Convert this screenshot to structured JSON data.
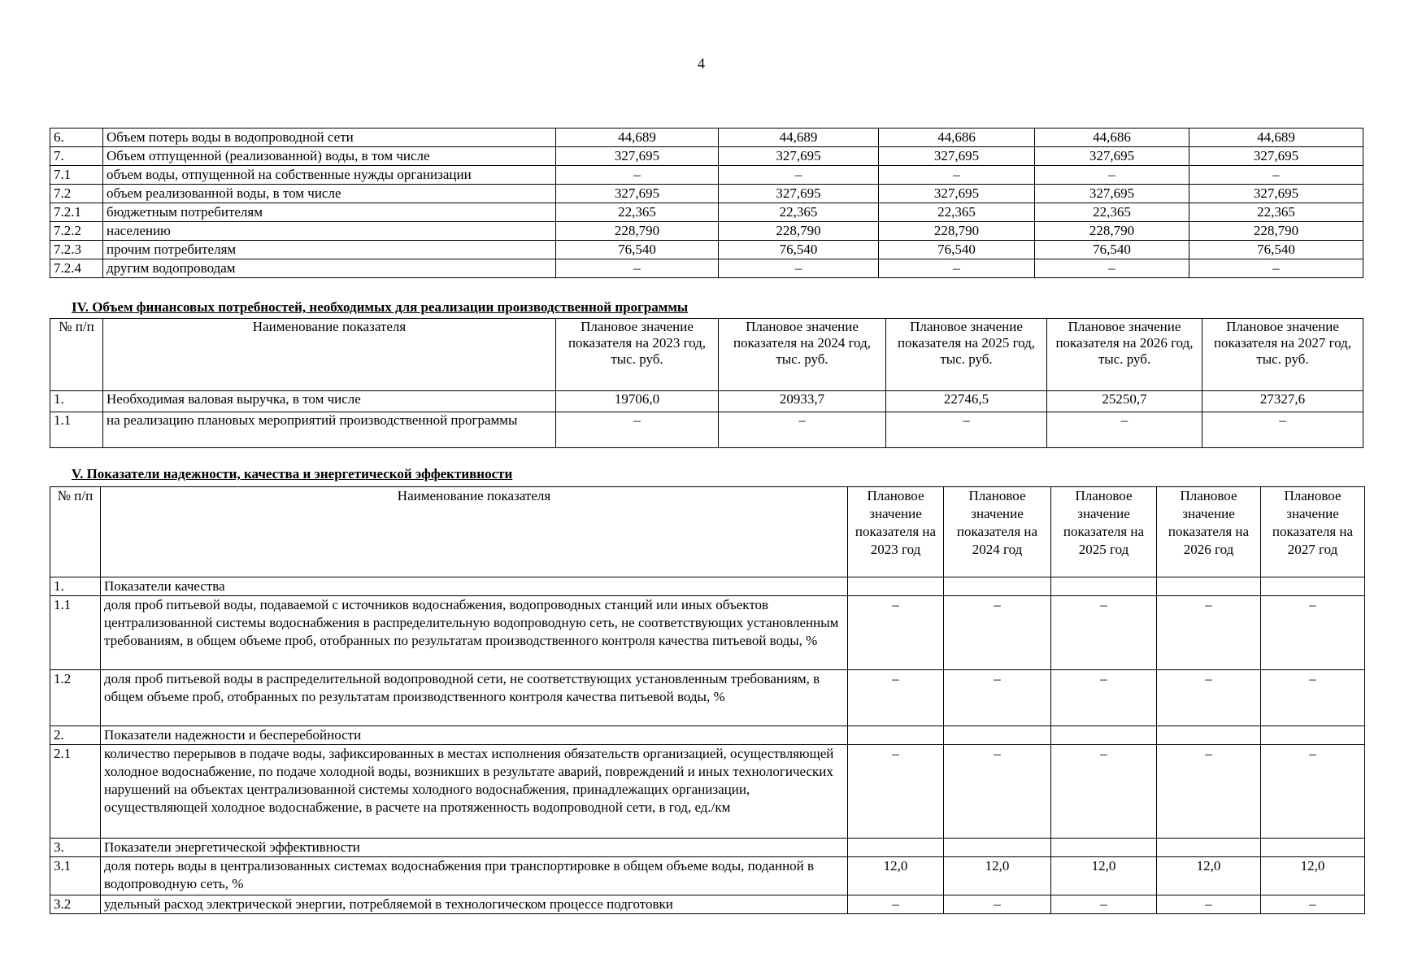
{
  "page_number": "4",
  "table_top": {
    "rows": [
      {
        "num": "6.",
        "name": "Объем потерь воды в водопроводной сети",
        "values": [
          "44,689",
          "44,689",
          "44,686",
          "44,686",
          "44,689"
        ]
      },
      {
        "num": "7.",
        "name": "Объем отпущенной (реализованной) воды, в том числе",
        "values": [
          "327,695",
          "327,695",
          "327,695",
          "327,695",
          "327,695"
        ]
      },
      {
        "num": "7.1",
        "name": "объем воды, отпущенной на собственные нужды организации",
        "values": [
          "–",
          "–",
          "–",
          "–",
          "–"
        ]
      },
      {
        "num": "7.2",
        "name": "объем реализованной воды, в том числе",
        "values": [
          "327,695",
          "327,695",
          "327,695",
          "327,695",
          "327,695"
        ]
      },
      {
        "num": "7.2.1",
        "name": "бюджетным потребителям",
        "values": [
          "22,365",
          "22,365",
          "22,365",
          "22,365",
          "22,365"
        ]
      },
      {
        "num": "7.2.2",
        "name": "населению",
        "values": [
          "228,790",
          "228,790",
          "228,790",
          "228,790",
          "228,790"
        ]
      },
      {
        "num": "7.2.3",
        "name": "прочим потребителям",
        "values": [
          "76,540",
          "76,540",
          "76,540",
          "76,540",
          "76,540"
        ]
      },
      {
        "num": "7.2.4",
        "name": "другим водопроводам",
        "values": [
          "–",
          "–",
          "–",
          "–",
          "–"
        ]
      }
    ]
  },
  "section4": {
    "title": "IV. Объем финансовых потребностей, необходимых для реализации производственной программы",
    "header": {
      "num": "№ п/п",
      "name": "Наименование показателя",
      "years": [
        "Плановое значение показателя на 2023 год, тыс. руб.",
        "Плановое значение показателя на 2024 год, тыс. руб.",
        "Плановое значение показателя на 2025 год, тыс. руб.",
        "Плановое значение показателя на 2026 год, тыс. руб.",
        "Плановое значение показателя на 2027 год, тыс. руб."
      ]
    },
    "rows": [
      {
        "num": "1.",
        "name": "Необходимая валовая выручка, в том числе",
        "values": [
          "19706,0",
          "20933,7",
          "22746,5",
          "25250,7",
          "27327,6"
        ]
      },
      {
        "num": "1.1",
        "name": "на реализацию плановых мероприятий производственной программы",
        "values": [
          "–",
          "–",
          "–",
          "–",
          "–"
        ]
      }
    ]
  },
  "section5": {
    "title": "V. Показатели надежности, качества и энергетической эффективности",
    "header": {
      "num": "№ п/п",
      "name": "Наименование показателя",
      "years": [
        "Плановое значение показателя на 2023 год",
        "Плановое значение показателя на 2024 год",
        "Плановое значение показателя на 2025 год",
        "Плановое значение показателя на 2026 год",
        "Плановое значение показателя на 2027 год"
      ]
    },
    "rows": [
      {
        "num": "1.",
        "name": "Показатели качества",
        "values": [
          "",
          "",
          "",
          "",
          ""
        ]
      },
      {
        "num": "1.1",
        "name": "доля проб питьевой воды, подаваемой с источников водоснабжения, водопроводных станций или иных объектов централизованной системы водоснабжения в распределительную водопроводную сеть, не соответствующих установленным требованиям, в общем объеме проб, отобранных по результатам производственного контроля качества питьевой воды, %",
        "values": [
          "–",
          "–",
          "–",
          "–",
          "–"
        ]
      },
      {
        "num": "1.2",
        "name": "доля проб питьевой воды в распределительной водопроводной сети, не соответствующих установленным требованиям, в общем объеме проб, отобранных по результатам производственного контроля качества питьевой воды, %",
        "values": [
          "–",
          "–",
          "–",
          "–",
          "–"
        ]
      },
      {
        "num": "2.",
        "name": "Показатели надежности и бесперебойности",
        "values": [
          "",
          "",
          "",
          "",
          ""
        ]
      },
      {
        "num": "2.1",
        "name": "количество перерывов в подаче воды, зафиксированных в местах исполнения обязательств организацией, осуществляющей холодное водоснабжение, по подаче холодной воды, возникших в результате аварий, повреждений и иных технологических нарушений на объектах централизованной системы холодного водоснабжения, принадлежащих организации, осуществляющей холодное водоснабжение, в расчете на протяженность водопроводной сети, в год, ед./км",
        "values": [
          "–",
          "–",
          "–",
          "–",
          "–"
        ]
      },
      {
        "num": "3.",
        "name": "Показатели энергетической эффективности",
        "values": [
          "",
          "",
          "",
          "",
          ""
        ]
      },
      {
        "num": "3.1",
        "name": "доля потерь воды в централизованных системах водоснабжения при транспортировке в общем объеме воды, поданной в водопроводную сеть, %",
        "values": [
          "12,0",
          "12,0",
          "12,0",
          "12,0",
          "12,0"
        ]
      },
      {
        "num": "3.2",
        "name": "удельный расход электрической энергии, потребляемой в технологическом процессе подготовки",
        "values": [
          "–",
          "–",
          "–",
          "–",
          "–"
        ]
      }
    ]
  }
}
